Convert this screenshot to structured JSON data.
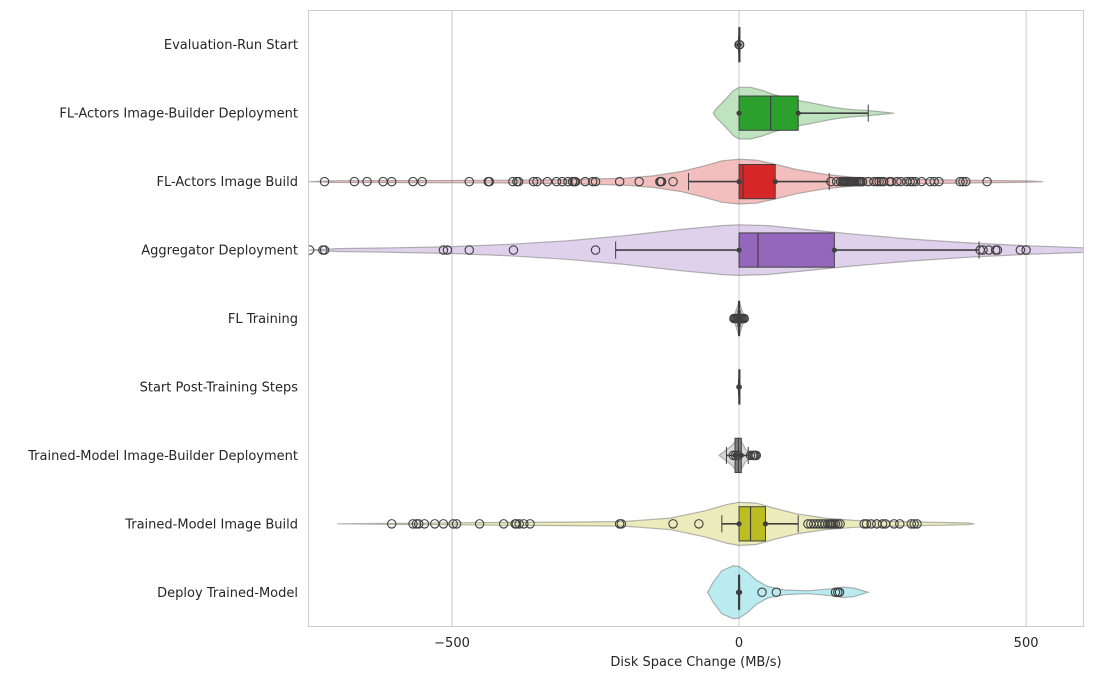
{
  "chart_data": {
    "type": "violin-box",
    "xlabel": "Disk Space Change (MB/s)",
    "ylabel": "",
    "xlim": [
      -750,
      600
    ],
    "xticks": [
      -500,
      0,
      500
    ],
    "xtick_labels": [
      "−500",
      "0",
      "500"
    ],
    "grid": "vertical",
    "categories": [
      "Evaluation-Run Start",
      "FL-Actors Image-Builder Deployment",
      "FL-Actors Image Build",
      "Aggregator Deployment",
      "FL Training",
      "Start Post-Training Steps",
      "Trained-Model Image-Builder Deployment",
      "Trained-Model Image Build",
      "Deploy Trained-Model"
    ],
    "series": [
      {
        "color": "#7f7f7f",
        "violin": [
          [
            -2,
            0
          ],
          [
            0,
            0.4
          ],
          [
            2,
            0
          ]
        ],
        "box": {
          "q1": -0.5,
          "median": 0,
          "q3": 0.5,
          "whisker_low": -1,
          "whisker_high": 1
        },
        "outliers": [
          0,
          1
        ]
      },
      {
        "color": "#2ca02c",
        "violin": [
          [
            -45,
            0
          ],
          [
            -40,
            0.15
          ],
          [
            -25,
            0.45
          ],
          [
            -10,
            0.78
          ],
          [
            0,
            0.9
          ],
          [
            20,
            0.9
          ],
          [
            40,
            0.8
          ],
          [
            60,
            0.65
          ],
          [
            80,
            0.55
          ],
          [
            100,
            0.45
          ],
          [
            120,
            0.38
          ],
          [
            140,
            0.3
          ],
          [
            160,
            0.22
          ],
          [
            180,
            0.16
          ],
          [
            200,
            0.12
          ],
          [
            220,
            0.1
          ],
          [
            240,
            0.06
          ],
          [
            270,
            0
          ]
        ],
        "box": {
          "q1": 0,
          "median": 55,
          "q3": 103,
          "whisker_low": 0,
          "whisker_high": 225
        },
        "outliers": []
      },
      {
        "color": "#d62728",
        "violin": [
          [
            -750,
            0
          ],
          [
            -700,
            0.03
          ],
          [
            -600,
            0.035
          ],
          [
            -500,
            0.04
          ],
          [
            -400,
            0.05
          ],
          [
            -300,
            0.07
          ],
          [
            -200,
            0.12
          ],
          [
            -150,
            0.2
          ],
          [
            -100,
            0.35
          ],
          [
            -60,
            0.55
          ],
          [
            -30,
            0.72
          ],
          [
            0,
            0.78
          ],
          [
            30,
            0.75
          ],
          [
            60,
            0.62
          ],
          [
            100,
            0.42
          ],
          [
            150,
            0.25
          ],
          [
            200,
            0.15
          ],
          [
            300,
            0.08
          ],
          [
            400,
            0.05
          ],
          [
            500,
            0.025
          ],
          [
            530,
            0
          ]
        ],
        "box": {
          "q1": 0,
          "median": 7,
          "q3": 63,
          "whisker_low": -88,
          "whisker_high": 157
        },
        "outliers": [
          -722,
          -670,
          -648,
          -620,
          -605,
          -568,
          -552,
          -470,
          -437,
          -435,
          -394,
          -387,
          -384,
          -358,
          -352,
          -334,
          -318,
          -308,
          -298,
          -290,
          -287,
          -285,
          -268,
          -255,
          -250,
          -208,
          -174,
          -138,
          -137,
          -135,
          -115,
          160,
          170,
          177,
          180,
          182,
          184,
          186,
          188,
          190,
          192,
          194,
          196,
          198,
          200,
          202,
          205,
          208,
          210,
          212,
          215,
          225,
          235,
          240,
          244,
          248,
          252,
          262,
          265,
          275,
          282,
          292,
          298,
          302,
          307,
          318,
          333,
          340,
          348,
          385,
          390,
          395,
          432
        ]
      },
      {
        "color": "#9467bd",
        "violin": [
          [
            -750,
            0
          ],
          [
            -700,
            0.05
          ],
          [
            -600,
            0.08
          ],
          [
            -500,
            0.12
          ],
          [
            -400,
            0.2
          ],
          [
            -300,
            0.32
          ],
          [
            -200,
            0.5
          ],
          [
            -100,
            0.72
          ],
          [
            -30,
            0.85
          ],
          [
            0,
            0.88
          ],
          [
            50,
            0.85
          ],
          [
            100,
            0.75
          ],
          [
            200,
            0.55
          ],
          [
            300,
            0.38
          ],
          [
            400,
            0.25
          ],
          [
            500,
            0.15
          ],
          [
            600,
            0.08
          ]
        ],
        "box": {
          "q1": 0,
          "median": 33,
          "q3": 166,
          "whisker_low": -215,
          "whisker_high": 418
        },
        "outliers": [
          -748,
          -725,
          -722,
          -515,
          -508,
          -470,
          -393,
          -250,
          420,
          425,
          435,
          447,
          450,
          490,
          500
        ]
      },
      {
        "color": "#8c564b",
        "violin": [
          [
            -10,
            0
          ],
          [
            -5,
            0.3
          ],
          [
            0,
            0.6
          ],
          [
            5,
            0.3
          ],
          [
            10,
            0
          ]
        ],
        "box": {
          "q1": -1,
          "median": 0,
          "q3": 1,
          "whisker_low": -2,
          "whisker_high": 2
        },
        "outliers": [
          -9,
          -7,
          -5,
          -3,
          -1,
          1,
          3,
          5,
          7,
          9
        ]
      },
      {
        "color": "#e377c2",
        "violin": [
          [
            -2,
            0
          ],
          [
            0,
            0.3
          ],
          [
            2,
            0
          ]
        ],
        "box": {
          "q1": -0.5,
          "median": 0,
          "q3": 0.5,
          "whisker_low": -1,
          "whisker_high": 1
        },
        "outliers": []
      },
      {
        "color": "#7f7f7f",
        "violin": [
          [
            -35,
            0
          ],
          [
            -25,
            0.15
          ],
          [
            -12,
            0.35
          ],
          [
            -5,
            0.55
          ],
          [
            0,
            0.6
          ],
          [
            5,
            0.45
          ],
          [
            12,
            0.2
          ],
          [
            20,
            0.08
          ],
          [
            30,
            0.05
          ],
          [
            35,
            0
          ]
        ],
        "box": {
          "q1": -7,
          "median": -1,
          "q3": 4,
          "whisker_low": -22,
          "whisker_high": 16
        },
        "outliers": [
          -10,
          -6,
          -2,
          20,
          24,
          26,
          28,
          30
        ]
      },
      {
        "color": "#bcbd22",
        "violin": [
          [
            -700,
            0
          ],
          [
            -600,
            0.02
          ],
          [
            -500,
            0.035
          ],
          [
            -400,
            0.05
          ],
          [
            -300,
            0.06
          ],
          [
            -200,
            0.08
          ],
          [
            -120,
            0.2
          ],
          [
            -60,
            0.45
          ],
          [
            -20,
            0.68
          ],
          [
            0,
            0.75
          ],
          [
            30,
            0.72
          ],
          [
            60,
            0.55
          ],
          [
            100,
            0.35
          ],
          [
            150,
            0.2
          ],
          [
            200,
            0.12
          ],
          [
            300,
            0.07
          ],
          [
            400,
            0.03
          ],
          [
            410,
            0
          ]
        ],
        "box": {
          "q1": 0,
          "median": 20,
          "q3": 46,
          "whisker_low": -30,
          "whisker_high": 103
        },
        "outliers": [
          -605,
          -568,
          -562,
          -558,
          -548,
          -530,
          -515,
          -498,
          -492,
          -452,
          -410,
          -390,
          -388,
          -383,
          -375,
          -364,
          -208,
          -205,
          -115,
          -70,
          120,
          125,
          130,
          135,
          140,
          145,
          150,
          155,
          158,
          160,
          162,
          165,
          168,
          172,
          176,
          218,
          222,
          230,
          240,
          250,
          255,
          270,
          280,
          300,
          305,
          310
        ]
      },
      {
        "color": "#17becf",
        "violin": [
          [
            -55,
            0
          ],
          [
            -45,
            0.35
          ],
          [
            -30,
            0.75
          ],
          [
            -10,
            0.92
          ],
          [
            0,
            0.9
          ],
          [
            15,
            0.7
          ],
          [
            30,
            0.42
          ],
          [
            50,
            0.2
          ],
          [
            80,
            0.08
          ],
          [
            120,
            0.05
          ],
          [
            160,
            0.12
          ],
          [
            180,
            0.18
          ],
          [
            200,
            0.15
          ],
          [
            225,
            0
          ]
        ],
        "box": {
          "q1": -1,
          "median": 0,
          "q3": 1,
          "whisker_low": -1,
          "whisker_high": 1
        },
        "outliers": [
          40,
          65,
          168,
          172,
          175
        ]
      }
    ]
  }
}
